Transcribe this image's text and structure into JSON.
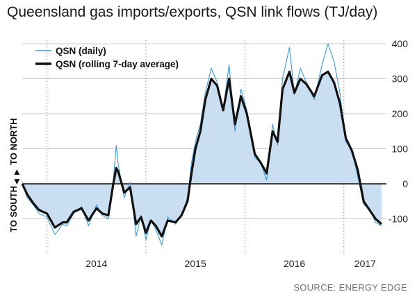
{
  "title": "Queensland gas imports/exports, QSN link flows (TJ/day)",
  "source": "SOURCE: ENERGY EDGE",
  "chart_data": {
    "type": "area",
    "title": "Queensland gas imports/exports, QSN link flows (TJ/day)",
    "xlabel": "",
    "ylabel": "",
    "direction_labels": {
      "south": "TO SOUTH",
      "north": "TO NORTH"
    },
    "y_ticks": [
      400,
      300,
      200,
      100,
      0,
      -100
    ],
    "ylim": [
      -200,
      410
    ],
    "x_ticks": [
      "2014",
      "2015",
      "2016",
      "2017"
    ],
    "xlim": [
      2013.75,
      2017.43
    ],
    "year_dividers": [
      2014.0,
      2015.0,
      2016.0,
      2017.0
    ],
    "grid": true,
    "legend": {
      "placement": "top-left"
    },
    "colors": {
      "daily": "#3e9ad6",
      "average": "#111111",
      "fill": "#c9def0",
      "grid": "#c8c8c8"
    },
    "series": [
      {
        "name": "QSN (daily)",
        "style": "thin line",
        "x": [
          2013.75,
          2013.8,
          2013.86,
          2013.92,
          2014.0,
          2014.08,
          2014.16,
          2014.2,
          2014.27,
          2014.35,
          2014.42,
          2014.5,
          2014.56,
          2014.62,
          2014.67,
          2014.7,
          2014.72,
          2014.78,
          2014.84,
          2014.9,
          2014.95,
          2015.0,
          2015.05,
          2015.1,
          2015.16,
          2015.22,
          2015.3,
          2015.36,
          2015.42,
          2015.46,
          2015.5,
          2015.55,
          2015.6,
          2015.66,
          2015.72,
          2015.78,
          2015.84,
          2015.9,
          2015.96,
          2016.02,
          2016.1,
          2016.16,
          2016.22,
          2016.28,
          2016.33,
          2016.38,
          2016.45,
          2016.5,
          2016.56,
          2016.62,
          2016.7,
          2016.78,
          2016.84,
          2016.9,
          2016.96,
          2017.02,
          2017.08,
          2017.14,
          2017.2,
          2017.26,
          2017.32,
          2017.38
        ],
        "values": [
          5,
          -40,
          -60,
          -85,
          -95,
          -145,
          -115,
          -120,
          -85,
          -65,
          -120,
          -60,
          -90,
          -100,
          10,
          110,
          55,
          -40,
          5,
          -150,
          -90,
          -160,
          -105,
          -130,
          -175,
          -95,
          -115,
          -90,
          -40,
          60,
          120,
          170,
          260,
          330,
          290,
          210,
          340,
          150,
          270,
          210,
          75,
          60,
          10,
          170,
          110,
          300,
          390,
          255,
          330,
          290,
          240,
          340,
          400,
          350,
          260,
          120,
          100,
          20,
          -60,
          -70,
          -110,
          -120
        ]
      },
      {
        "name": "QSN (rolling 7-day average)",
        "style": "thick line",
        "x": [
          2013.75,
          2013.8,
          2013.86,
          2013.92,
          2014.0,
          2014.08,
          2014.16,
          2014.2,
          2014.27,
          2014.35,
          2014.42,
          2014.5,
          2014.56,
          2014.62,
          2014.67,
          2014.7,
          2014.72,
          2014.78,
          2014.84,
          2014.9,
          2014.95,
          2015.0,
          2015.05,
          2015.1,
          2015.16,
          2015.22,
          2015.3,
          2015.36,
          2015.42,
          2015.46,
          2015.5,
          2015.55,
          2015.6,
          2015.66,
          2015.72,
          2015.78,
          2015.84,
          2015.9,
          2015.96,
          2016.02,
          2016.1,
          2016.16,
          2016.22,
          2016.28,
          2016.33,
          2016.38,
          2016.45,
          2016.5,
          2016.56,
          2016.62,
          2016.7,
          2016.78,
          2016.84,
          2016.9,
          2016.96,
          2017.02,
          2017.08,
          2017.14,
          2017.2,
          2017.26,
          2017.32,
          2017.38
        ],
        "values": [
          0,
          -30,
          -55,
          -75,
          -85,
          -125,
          -110,
          -110,
          -80,
          -70,
          -105,
          -70,
          -85,
          -90,
          0,
          45,
          35,
          -25,
          -10,
          -115,
          -95,
          -140,
          -105,
          -120,
          -150,
          -105,
          -110,
          -90,
          -50,
          30,
          100,
          150,
          240,
          300,
          280,
          210,
          300,
          170,
          250,
          200,
          85,
          60,
          30,
          150,
          120,
          270,
          320,
          260,
          300,
          285,
          250,
          310,
          320,
          290,
          230,
          130,
          95,
          40,
          -50,
          -75,
          -100,
          -115
        ]
      }
    ]
  }
}
